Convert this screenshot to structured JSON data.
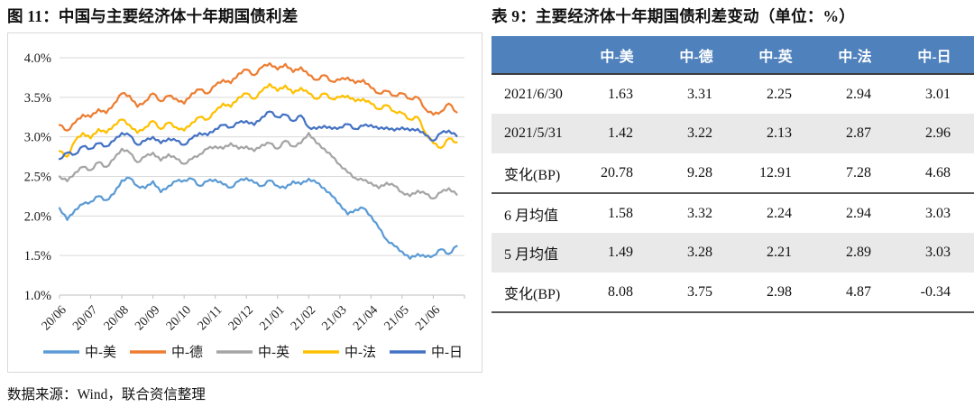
{
  "figure": {
    "title": "图 11：中国与主要经济体十年期国债利差",
    "source": "数据来源：Wind，联合资信整理"
  },
  "chart_data": {
    "type": "line",
    "title": "中国与主要经济体十年期国债利差",
    "x_labels": [
      "20/06",
      "20/07",
      "20/08",
      "20/09",
      "20/10",
      "20/11",
      "20/12",
      "21/01",
      "21/02",
      "21/03",
      "21/04",
      "21/05",
      "21/06"
    ],
    "points_per_month": 4,
    "ylim": [
      1.0,
      4.0
    ],
    "yticks": [
      4.0,
      3.5,
      3.0,
      2.5,
      2.0,
      1.5,
      1.0
    ],
    "ytick_suffix": "%",
    "grid": true,
    "legend_position": "bottom",
    "gridline_color": "#d9d9d9",
    "axis_color": "#bfbfbf",
    "series": [
      {
        "name": "中-美",
        "color": "#5B9BD5",
        "values": [
          2.1,
          1.95,
          2.08,
          2.15,
          2.18,
          2.25,
          2.2,
          2.28,
          2.45,
          2.48,
          2.38,
          2.35,
          2.44,
          2.3,
          2.38,
          2.44,
          2.45,
          2.47,
          2.38,
          2.44,
          2.46,
          2.4,
          2.36,
          2.44,
          2.48,
          2.42,
          2.38,
          2.45,
          2.38,
          2.35,
          2.44,
          2.4,
          2.47,
          2.42,
          2.35,
          2.25,
          2.15,
          2.02,
          2.08,
          2.1,
          2.0,
          1.85,
          1.7,
          1.62,
          1.55,
          1.46,
          1.52,
          1.48,
          1.5,
          1.58,
          1.52,
          1.62
        ]
      },
      {
        "name": "中-德",
        "color": "#ED7D31",
        "values": [
          3.15,
          3.08,
          3.18,
          3.28,
          3.25,
          3.35,
          3.3,
          3.42,
          3.55,
          3.52,
          3.38,
          3.45,
          3.55,
          3.45,
          3.52,
          3.48,
          3.42,
          3.55,
          3.6,
          3.55,
          3.65,
          3.72,
          3.68,
          3.8,
          3.85,
          3.78,
          3.88,
          3.93,
          3.85,
          3.92,
          3.82,
          3.88,
          3.78,
          3.72,
          3.78,
          3.7,
          3.72,
          3.75,
          3.68,
          3.72,
          3.62,
          3.55,
          3.58,
          3.52,
          3.55,
          3.48,
          3.5,
          3.35,
          3.28,
          3.32,
          3.42,
          3.31
        ]
      },
      {
        "name": "中-英",
        "color": "#A5A5A5",
        "values": [
          2.5,
          2.44,
          2.55,
          2.62,
          2.58,
          2.68,
          2.62,
          2.72,
          2.85,
          2.8,
          2.68,
          2.75,
          2.8,
          2.7,
          2.78,
          2.72,
          2.66,
          2.72,
          2.78,
          2.85,
          2.88,
          2.85,
          2.92,
          2.85,
          2.88,
          2.82,
          2.9,
          2.92,
          2.85,
          2.95,
          2.88,
          2.92,
          3.05,
          2.92,
          2.85,
          2.75,
          2.65,
          2.55,
          2.48,
          2.45,
          2.42,
          2.35,
          2.42,
          2.38,
          2.3,
          2.25,
          2.32,
          2.28,
          2.22,
          2.3,
          2.35,
          2.27
        ]
      },
      {
        "name": "中-法",
        "color": "#FFC000",
        "values": [
          2.82,
          2.75,
          2.95,
          3.05,
          2.98,
          3.1,
          3.05,
          3.15,
          3.22,
          3.15,
          3.05,
          3.12,
          3.2,
          3.1,
          3.18,
          3.12,
          3.08,
          3.18,
          3.25,
          3.22,
          3.32,
          3.42,
          3.38,
          3.5,
          3.55,
          3.48,
          3.58,
          3.67,
          3.58,
          3.65,
          3.55,
          3.62,
          3.55,
          3.48,
          3.55,
          3.48,
          3.5,
          3.52,
          3.45,
          3.48,
          3.42,
          3.35,
          3.4,
          3.32,
          3.3,
          3.22,
          3.25,
          3.05,
          2.92,
          2.86,
          2.98,
          2.93
        ]
      },
      {
        "name": "中-日",
        "color": "#4472C4",
        "values": [
          2.72,
          2.8,
          2.78,
          2.88,
          2.85,
          2.92,
          2.88,
          2.95,
          3.05,
          3.02,
          2.9,
          2.95,
          3.0,
          2.92,
          2.98,
          2.95,
          2.9,
          2.98,
          3.05,
          3.02,
          3.1,
          3.15,
          3.12,
          3.18,
          3.2,
          3.15,
          3.25,
          3.32,
          3.25,
          3.28,
          3.2,
          3.27,
          3.12,
          3.1,
          3.14,
          3.1,
          3.12,
          3.16,
          3.1,
          3.14,
          3.15,
          3.1,
          3.12,
          3.08,
          3.12,
          3.08,
          3.1,
          3.02,
          2.95,
          3.05,
          3.08,
          3.01
        ]
      }
    ]
  },
  "table": {
    "title": "表 9：主要经济体十年期国债利差变动（单位：%）",
    "header_bg": "#4f81bd",
    "shaded_row_bg": "#e9e9e9",
    "columns": [
      "",
      "中-美",
      "中-德",
      "中-英",
      "中-法",
      "中-日"
    ],
    "rows": [
      {
        "label": "2021/6/30",
        "values": [
          "1.63",
          "3.31",
          "2.25",
          "2.94",
          "3.01"
        ],
        "shaded": false,
        "divider_below": false
      },
      {
        "label": "2021/5/31",
        "values": [
          "1.42",
          "3.22",
          "2.13",
          "2.87",
          "2.96"
        ],
        "shaded": true,
        "divider_below": false
      },
      {
        "label": "变化(BP)",
        "values": [
          "20.78",
          "9.28",
          "12.91",
          "7.28",
          "4.68"
        ],
        "shaded": false,
        "divider_below": true
      },
      {
        "label": "6 月均值",
        "values": [
          "1.58",
          "3.32",
          "2.24",
          "2.94",
          "3.03"
        ],
        "shaded": false,
        "divider_below": false
      },
      {
        "label": "5 月均值",
        "values": [
          "1.49",
          "3.28",
          "2.21",
          "2.89",
          "3.03"
        ],
        "shaded": true,
        "divider_below": false
      },
      {
        "label": "变化(BP)",
        "values": [
          "8.08",
          "3.75",
          "2.98",
          "4.87",
          "-0.34"
        ],
        "shaded": false,
        "divider_below": false
      }
    ]
  }
}
